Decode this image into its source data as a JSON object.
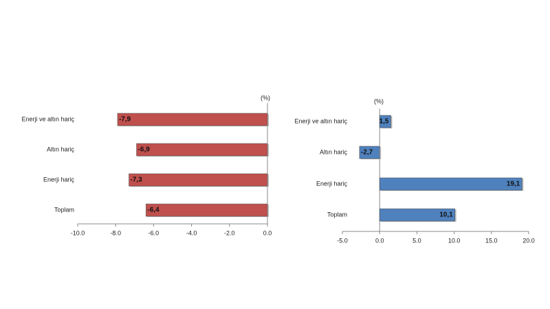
{
  "chart_data": [
    {
      "type": "bar",
      "orientation": "horizontal",
      "unit_label": "(%)",
      "categories": [
        "Enerji ve altın hariç",
        "Altın hariç",
        "Enerji hariç",
        "Toplam"
      ],
      "values": [
        -7.9,
        -6.9,
        -7.3,
        -6.4
      ],
      "value_labels": [
        "-7,9",
        "-6,9",
        "-7,3",
        "-6,4"
      ],
      "color": "#c0504d",
      "xlim": [
        -10,
        0
      ],
      "xticks": [
        {
          "value": -10,
          "label": "-10.0"
        },
        {
          "value": -8,
          "label": "-8.0"
        },
        {
          "value": -6,
          "label": "-6.0"
        },
        {
          "value": -4,
          "label": "-4.0"
        },
        {
          "value": -2,
          "label": "-2.0"
        },
        {
          "value": 0,
          "label": "0.0"
        }
      ]
    },
    {
      "type": "bar",
      "orientation": "horizontal",
      "unit_label": "(%)",
      "categories": [
        "Enerji ve altın hariç",
        "Altın hariç",
        "Enerji hariç",
        "Toplam"
      ],
      "values": [
        1.5,
        -2.7,
        19.1,
        10.1
      ],
      "value_labels": [
        "1,5",
        "-2,7",
        "19,1",
        "10,1"
      ],
      "color": "#4f81bd",
      "xlim": [
        -5,
        20
      ],
      "xticks": [
        {
          "value": -5,
          "label": "-5.0"
        },
        {
          "value": 0,
          "label": "0.0"
        },
        {
          "value": 5,
          "label": "5.0"
        },
        {
          "value": 10,
          "label": "10.0"
        },
        {
          "value": 15,
          "label": "15.0"
        },
        {
          "value": 20,
          "label": "20.0"
        }
      ]
    }
  ]
}
